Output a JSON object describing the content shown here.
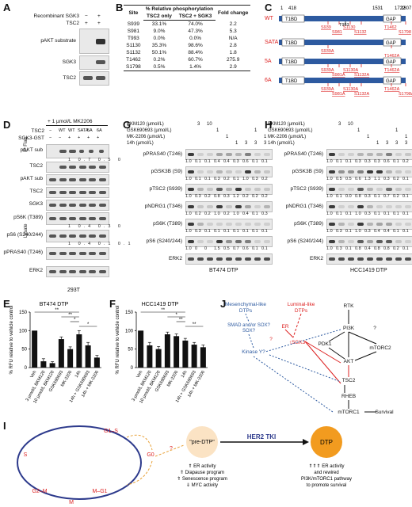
{
  "panels": {
    "A": {
      "letter": "A",
      "rows": [
        {
          "label": "Recombinant SGK3",
          "values": [
            "−",
            "+"
          ]
        },
        {
          "label": "TSC2",
          "values": [
            "+",
            "+"
          ]
        }
      ],
      "blots": [
        "pAKT substrate",
        "SGK3",
        "TSC2"
      ]
    },
    "B": {
      "letter": "B",
      "header_group": "% Relative phosphorylation",
      "headers": [
        "Site",
        "TSC2 only",
        "TSC2 + SGK3",
        "Fold change"
      ],
      "rows": [
        [
          "S939",
          "33.1%",
          "74.0%",
          "2.2"
        ],
        [
          "S981",
          "9.0%",
          "47.3%",
          "5.3"
        ],
        [
          "T993",
          "0.0%",
          "0.0%",
          "N/A"
        ],
        [
          "S1130",
          "35.3%",
          "98.6%",
          "2.8"
        ],
        [
          "S1132",
          "50.1%",
          "88.4%",
          "1.8"
        ],
        [
          "T1462",
          "0.2%",
          "60.7%",
          "275.9"
        ],
        [
          "S1798",
          "0.5%",
          "1.4%",
          "2.9"
        ]
      ]
    },
    "C": {
      "letter": "C",
      "coords": [
        "1",
        "418",
        "1531",
        "1722",
        "1807"
      ],
      "domains": [
        "T1BD",
        "GAP"
      ],
      "constructs": [
        {
          "name": "WT",
          "sites_top": [
            "T993"
          ],
          "sites": [
            "S939",
            "S981",
            "S1130",
            "S1132",
            "T1462",
            "S1798"
          ]
        },
        {
          "name": "SATA",
          "sites": [
            "S939A",
            "T1462A"
          ]
        },
        {
          "name": "5A",
          "sites": [
            "S939A",
            "S981A",
            "S1130A",
            "S1132A",
            "T1462A"
          ]
        },
        {
          "name": "6A",
          "sites": [
            "S939A",
            "S981A",
            "S1130A",
            "S1132A",
            "T1462A",
            "S1798A"
          ]
        }
      ]
    },
    "D": {
      "letter": "D",
      "treatment": "+ 1 µmol/L MK2206",
      "rows": [
        {
          "label": "TSC2",
          "values": [
            "−",
            "WT",
            "WT",
            "SATA",
            "5A",
            "6A"
          ]
        },
        {
          "label": "SGK3-GST",
          "values": [
            "−",
            "−",
            "+",
            "+",
            "+",
            "+"
          ]
        }
      ],
      "ip_label": "IP Flag",
      "lysate_label": "Lysate",
      "blots": [
        "pAKT sub",
        "TSC2",
        "pAKT sub",
        "TSC2",
        "SGK3",
        "pS6K (T389)",
        "pS6 (S240/244)",
        "pPRAS40 (T246)",
        "ERK2"
      ],
      "quant": {
        "pAKT sub": [
          "1",
          "0.7",
          "0.5",
          "0"
        ],
        "pS6K (T389)": [
          "1",
          "0.4",
          "0.3",
          "0"
        ],
        "pS6 (S240/244)": [
          "1",
          "0.4",
          "0.1",
          "0.1"
        ]
      },
      "cell_line": "293T"
    },
    "G": {
      "letter": "G",
      "treatments": [
        {
          "label": "BKM120 (µmol/L)",
          "values": [
            "",
            "3",
            "10",
            "",
            "",
            "",
            "",
            "",
            ""
          ]
        },
        {
          "label": "GSK690693 (µmol/L)",
          "values": [
            "",
            "",
            "",
            "1",
            "",
            "",
            "",
            "1",
            ""
          ]
        },
        {
          "label": "MK-2206 (µmol/L)",
          "values": [
            "",
            "",
            "",
            "",
            "1",
            "",
            "",
            "",
            "1"
          ]
        },
        {
          "label": "14h (µmol/L)",
          "values": [
            "",
            "",
            "",
            "",
            "",
            "1",
            "3",
            "3",
            "3"
          ]
        }
      ],
      "blots": [
        {
          "name": "pPRAS40 (T246)",
          "q": [
            "1.0",
            "0.1",
            "0.1",
            "0.4",
            "0.4",
            "0.3",
            "0.6",
            "0.1",
            "0.1"
          ]
        },
        {
          "name": "pGSK3B (S9)",
          "q": [
            "1.0",
            "0.1",
            "0.1",
            "0.3",
            "0.2",
            "0.1",
            "1.0",
            "0.3",
            "0.2"
          ]
        },
        {
          "name": "pTSC2 (S939)",
          "q": [
            "1.0",
            "0.3",
            "0.2",
            "0.8",
            "0.3",
            "1.2",
            "0.2",
            "0.2",
            "0.2"
          ]
        },
        {
          "name": "pNDRG1 (T346)",
          "q": [
            "1.0",
            "0.2",
            "0.2",
            "1.0",
            "0.2",
            "1.0",
            "0.4",
            "0.1",
            "0.3"
          ]
        },
        {
          "name": "pS6K (T389)",
          "q": [
            "1.0",
            "0.3",
            "0.1",
            "0.1",
            "0.1",
            "0.1",
            "0.1",
            "0.1",
            "0.1"
          ]
        },
        {
          "name": "pS6 (S240/244)",
          "q": [
            "1.0",
            "0",
            "0",
            "1.5",
            "0.5",
            "0.7",
            "0.6",
            "0.1",
            "0.1"
          ]
        },
        {
          "name": "ERK2",
          "q": []
        }
      ],
      "cell_line": "BT474 DTP"
    },
    "H": {
      "letter": "H",
      "treatments": [
        {
          "label": "BKM120 (µmol/L)",
          "values": [
            "",
            "3",
            "10",
            "",
            "",
            "",
            "",
            "",
            ""
          ]
        },
        {
          "label": "GSK690693 (µmol/L)",
          "values": [
            "",
            "",
            "",
            "1",
            "",
            "",
            "",
            "1",
            ""
          ]
        },
        {
          "label": "MK-2206 (µmol/L)",
          "values": [
            "",
            "",
            "",
            "",
            "1",
            "",
            "",
            "",
            "1"
          ]
        },
        {
          "label": "14h (µmol/L)",
          "values": [
            "",
            "",
            "",
            "",
            "",
            "1",
            "3",
            "3",
            "3"
          ]
        }
      ],
      "blots": [
        {
          "name": "pPRAS40 (T246)",
          "q": [
            "1.0",
            "0.1",
            "0.1",
            "0.3",
            "0.3",
            "0.3",
            "0.6",
            "0.1",
            "0.2"
          ]
        },
        {
          "name": "pGSK3B (S9)",
          "q": [
            "1.0",
            "0.5",
            "0.5",
            "0.6",
            "1.3",
            "1.1",
            "0.3",
            "0.2",
            "0.1"
          ]
        },
        {
          "name": "pTSC2 (S939)",
          "q": [
            "1.0",
            "0.1",
            "0.0",
            "0.8",
            "0.3",
            "0.1",
            "0.7",
            "0.2",
            "0.1"
          ]
        },
        {
          "name": "pNDRG1 (T346)",
          "q": [
            "1.0",
            "0.1",
            "0.1",
            "1.0",
            "0.3",
            "0.1",
            "0.1",
            "0.1",
            "0.1"
          ]
        },
        {
          "name": "pS6K (T389)",
          "q": [
            "1.0",
            "0.3",
            "0.1",
            "1.0",
            "0.3",
            "0.4",
            "0.4",
            "0.1",
            "0.1"
          ]
        },
        {
          "name": "pS6 (S240/244)",
          "q": [
            "1.0",
            "0.3",
            "0.1",
            "0.8",
            "0.4",
            "0.8",
            "0.8",
            "0.2",
            "0.1"
          ]
        },
        {
          "name": "ERK2",
          "q": []
        }
      ],
      "cell_line": "HCC1419 DTP"
    },
    "E": {
      "letter": "E"
    },
    "F": {
      "letter": "F"
    },
    "J": {
      "letter": "J",
      "nodes": [
        "Mesenchymal-like DTPs",
        "Luminal-like DTPs",
        "SMAD and/or SOX?",
        "ER",
        "↑SGK3",
        "Kinase Y?",
        "RTK",
        "PI3K",
        "PDK1",
        "mTORC2",
        "AKT",
        "TSC2",
        "RHEB",
        "mTORC1",
        "Survival",
        "?",
        "?"
      ]
    },
    "I": {
      "letter": "I",
      "cycle": [
        "G1–S",
        "S",
        "G2–M",
        "M",
        "M–G1",
        "G0",
        "?"
      ],
      "pre_dtp": "\"pre-DTP\"",
      "pre_dtp_notes": [
        "⇑ ER activity",
        "⇑ Diapause program",
        "⇑ Senescence program",
        "⇓ MYC activity"
      ],
      "tki": "HER2 TKI",
      "dtp": "DTP",
      "dtp_notes": [
        "⇑⇑⇑ ER activity",
        "and rewired",
        "PI3K/mTORC1 pathway",
        "to promote survival"
      ]
    }
  },
  "chart_data": [
    {
      "type": "bar",
      "title": "BT474 DTP",
      "ylabel": "% RFU relative to vehicle control",
      "ylim": [
        0,
        150
      ],
      "yticks": [
        0,
        50,
        100,
        150
      ],
      "categories": [
        "Veh",
        "3 µmol/L BKM120",
        "10 µmol/L BKM120",
        "GSK690693",
        "MK-2206",
        "14h",
        "14h + GSK690693",
        "14h + MK-2206"
      ],
      "values": [
        100,
        17,
        12,
        77,
        50,
        90,
        60,
        27
      ],
      "errors": [
        0,
        7,
        4,
        6,
        6,
        10,
        8,
        6
      ],
      "significance": [
        "**",
        "**",
        "*",
        "*"
      ]
    },
    {
      "type": "bar",
      "title": "HCC1419 DTP",
      "ylabel": "% RFU relative to vehicle control",
      "ylim": [
        0,
        150
      ],
      "yticks": [
        0,
        50,
        100,
        150
      ],
      "categories": [
        "Veh",
        "3 µmol/L BKM120",
        "10 µmol/L BKM120",
        "GSK690693",
        "MK-2206",
        "14h",
        "14h + GSK690693",
        "14h + MK-2206"
      ],
      "values": [
        100,
        60,
        50,
        90,
        85,
        73,
        62,
        55
      ],
      "errors": [
        0,
        8,
        7,
        6,
        6,
        6,
        6,
        6
      ],
      "significance": [
        "**",
        "*",
        "**",
        "**"
      ]
    }
  ]
}
